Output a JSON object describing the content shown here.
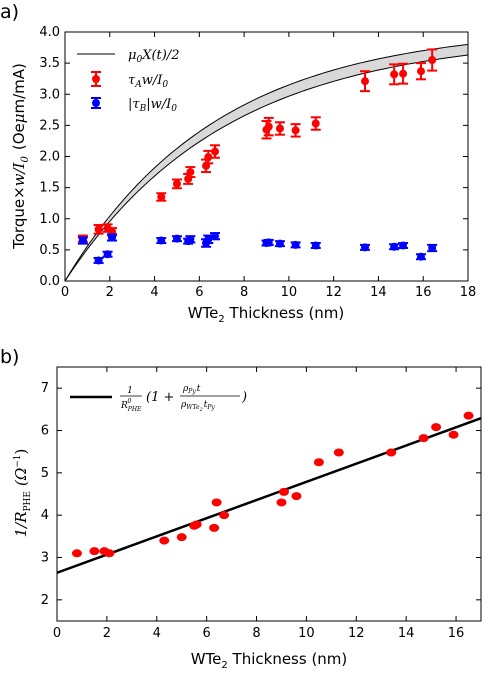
{
  "chart_data": [
    {
      "panel_label": "a)",
      "type": "scatter",
      "xlabel_main": "WTe",
      "xlabel_sub": "2",
      "xlabel_rest": " Thickness (nm)",
      "ylabel_pre": "Torque×",
      "ylabel_math": "w/I",
      "ylabel_sub": "0",
      "ylabel_post": "(Oe",
      "ylabel_mu": "μ",
      "ylabel_end": "m/mA)",
      "xlim": [
        0,
        18
      ],
      "ylim": [
        0,
        4
      ],
      "xticks": [
        "0",
        "2",
        "4",
        "6",
        "8",
        "10",
        "12",
        "14",
        "16",
        "18"
      ],
      "yticks": [
        "0.0",
        "0.5",
        "1.0",
        "1.5",
        "2.0",
        "2.5",
        "3.0",
        "3.5",
        "4.0"
      ],
      "legend": {
        "position": "top-left",
        "entries": [
          {
            "label_a": "μ",
            "label_b": "0",
            "label_c": "X(t)/2"
          },
          {
            "label_a": "τ",
            "label_b": "A",
            "label_c": "w/I",
            "label_d": "0"
          },
          {
            "label_a": "|τ",
            "label_b": "B",
            "label_c": "|w/I",
            "label_d": "0"
          }
        ]
      },
      "colors": {
        "A": "#ff0000",
        "B": "#0000ff",
        "band": "#d9d9d9"
      },
      "band_model": {
        "description_free": true,
        "upper_at_18": 3.8,
        "lower_at_18": 3.63
      },
      "series": [
        {
          "key": "A",
          "x": [
            0.8,
            1.5,
            1.9,
            2.1,
            4.3,
            5.0,
            5.5,
            5.6,
            6.3,
            6.4,
            6.7,
            9.0,
            9.1,
            9.6,
            10.3,
            11.2,
            13.4,
            14.7,
            15.1,
            15.9,
            16.4
          ],
          "y": [
            0.68,
            0.83,
            0.85,
            0.79,
            1.35,
            1.56,
            1.64,
            1.75,
            1.85,
            1.99,
            2.08,
            2.43,
            2.48,
            2.45,
            2.42,
            2.53,
            3.21,
            3.32,
            3.33,
            3.37,
            3.55
          ],
          "err": [
            0.05,
            0.07,
            0.06,
            0.06,
            0.06,
            0.07,
            0.08,
            0.08,
            0.1,
            0.1,
            0.1,
            0.14,
            0.14,
            0.1,
            0.1,
            0.1,
            0.16,
            0.16,
            0.16,
            0.13,
            0.17
          ]
        },
        {
          "key": "B",
          "x": [
            0.8,
            1.5,
            1.9,
            2.1,
            4.3,
            5.0,
            5.5,
            5.6,
            6.3,
            6.4,
            6.7,
            9.0,
            9.1,
            9.6,
            10.3,
            11.2,
            13.4,
            14.7,
            15.1,
            15.9,
            16.4
          ],
          "y": [
            0.65,
            0.33,
            0.43,
            0.7,
            0.65,
            0.68,
            0.64,
            0.67,
            0.61,
            0.67,
            0.72,
            0.61,
            0.62,
            0.6,
            0.58,
            0.57,
            0.54,
            0.55,
            0.57,
            0.39,
            0.53
          ],
          "err": [
            0.05,
            0.04,
            0.04,
            0.05,
            0.04,
            0.04,
            0.04,
            0.05,
            0.06,
            0.06,
            0.05,
            0.04,
            0.04,
            0.04,
            0.04,
            0.04,
            0.04,
            0.04,
            0.04,
            0.04,
            0.05
          ]
        }
      ]
    },
    {
      "panel_label": "b)",
      "type": "scatter",
      "xlabel_main": "WTe",
      "xlabel_sub": "2",
      "xlabel_rest": " Thickness (nm)",
      "ylabel_a": "1/R",
      "ylabel_b": "PHE",
      "ylabel_c": "(Ω",
      "ylabel_d": "−1",
      "ylabel_e": ")",
      "xlim": [
        0,
        17
      ],
      "ylim": [
        1.5,
        7.5
      ],
      "xticks": [
        "0",
        "2",
        "4",
        "6",
        "8",
        "10",
        "12",
        "14",
        "16"
      ],
      "yticks": [
        "2",
        "3",
        "4",
        "5",
        "6",
        "7"
      ],
      "legend": {
        "position": "top-left",
        "entries": [
          {
            "frac_num": "1",
            "frac_den": "R",
            "frac_den_sub": "PHE",
            "frac_den_sup": "0",
            "paren_open": "(1 +",
            "inner_num": "ρ",
            "inner_num_sub": "Py",
            "inner_num_t": "t",
            "inner_den": "ρ",
            "inner_den_sub": "WTe",
            "inner_den_sub2": "2",
            "inner_den_t": "t",
            "inner_den_tsub": "Py",
            "paren_close": ")"
          }
        ]
      },
      "colors": {
        "points": "#ff0000",
        "line": "#000000"
      },
      "fit_line": {
        "x": [
          0,
          17
        ],
        "y": [
          2.64,
          6.29
        ]
      },
      "points": {
        "x": [
          0.8,
          1.5,
          1.9,
          2.1,
          4.3,
          5.0,
          5.5,
          5.6,
          6.3,
          6.4,
          6.7,
          9.0,
          9.1,
          9.6,
          10.5,
          11.3,
          13.4,
          14.7,
          15.2,
          15.9,
          16.5
        ],
        "y": [
          3.1,
          3.15,
          3.15,
          3.1,
          3.4,
          3.48,
          3.75,
          3.78,
          3.7,
          4.3,
          4.0,
          4.3,
          4.55,
          4.45,
          5.25,
          5.48,
          5.48,
          5.82,
          6.08,
          5.9,
          6.35
        ]
      }
    }
  ]
}
